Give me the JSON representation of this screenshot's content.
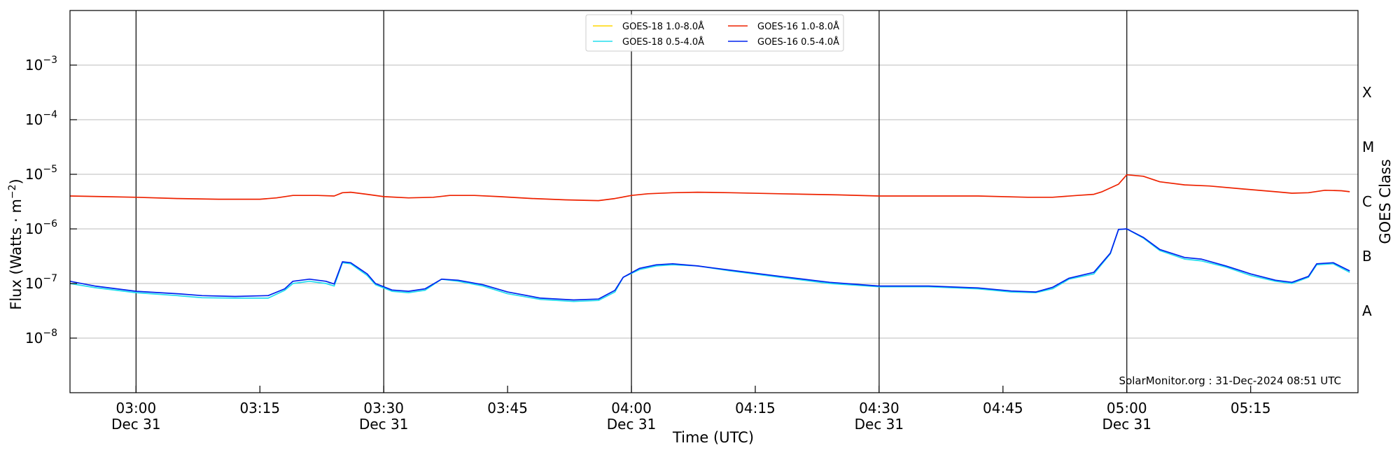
{
  "chart_data": {
    "type": "line",
    "xlabel": "Time (UTC)",
    "ylabel": "Flux (Watts · m",
    "ylabel_sup": "−2",
    "ylabel_close": ")",
    "ylabel_right": "GOES Class",
    "y_scale": "log",
    "ylim": [
      1e-09,
      0.01
    ],
    "xlim": [
      "02:52",
      "05:28"
    ],
    "y_ticks": [
      {
        "value": 1e-08,
        "base": "10",
        "exp": "−8"
      },
      {
        "value": 1e-07,
        "base": "10",
        "exp": "−7"
      },
      {
        "value": 1e-06,
        "base": "10",
        "exp": "−6"
      },
      {
        "value": 1e-05,
        "base": "10",
        "exp": "−5"
      },
      {
        "value": 0.0001,
        "base": "10",
        "exp": "−4"
      },
      {
        "value": 0.001,
        "base": "10",
        "exp": "−3"
      }
    ],
    "x_ticks": [
      {
        "time": "03:00",
        "label": "03:00",
        "date": "Dec 31",
        "major": true
      },
      {
        "time": "03:15",
        "label": "03:15",
        "date": "",
        "major": false
      },
      {
        "time": "03:30",
        "label": "03:30",
        "date": "Dec 31",
        "major": true
      },
      {
        "time": "03:45",
        "label": "03:45",
        "date": "",
        "major": false
      },
      {
        "time": "04:00",
        "label": "04:00",
        "date": "Dec 31",
        "major": true
      },
      {
        "time": "04:15",
        "label": "04:15",
        "date": "",
        "major": false
      },
      {
        "time": "04:30",
        "label": "04:30",
        "date": "Dec 31",
        "major": true
      },
      {
        "time": "04:45",
        "label": "04:45",
        "date": "",
        "major": false
      },
      {
        "time": "05:00",
        "label": "05:00",
        "date": "Dec 31",
        "major": true
      },
      {
        "time": "05:15",
        "label": "05:15",
        "date": "",
        "major": false
      }
    ],
    "goes_classes": [
      {
        "label": "A",
        "flux": 3.16e-08
      },
      {
        "label": "B",
        "flux": 3.16e-07
      },
      {
        "label": "C",
        "flux": 3.16e-06
      },
      {
        "label": "M",
        "flux": 3.16e-05
      },
      {
        "label": "X",
        "flux": 0.000316
      }
    ],
    "grid": true,
    "legend_position": "top-center",
    "legend": [
      {
        "name": "GOES-18 1.0-8.0Å",
        "color": "#ffd700"
      },
      {
        "name": "GOES-18 0.5-4.0Å",
        "color": "#22ddee"
      },
      {
        "name": "GOES-16 1.0-8.0Å",
        "color": "#ee2200"
      },
      {
        "name": "GOES-16 0.5-4.0Å",
        "color": "#0022ee"
      }
    ],
    "series": [
      {
        "name": "GOES-16 1.0-8.0Å",
        "color": "#ee2200",
        "points": [
          [
            "02:52",
            4e-06
          ],
          [
            "02:56",
            3.9e-06
          ],
          [
            "03:00",
            3.8e-06
          ],
          [
            "03:05",
            3.6e-06
          ],
          [
            "03:10",
            3.5e-06
          ],
          [
            "03:15",
            3.5e-06
          ],
          [
            "03:17",
            3.7e-06
          ],
          [
            "03:19",
            4.1e-06
          ],
          [
            "03:22",
            4.1e-06
          ],
          [
            "03:24",
            4e-06
          ],
          [
            "03:25",
            4.6e-06
          ],
          [
            "03:26",
            4.7e-06
          ],
          [
            "03:28",
            4.3e-06
          ],
          [
            "03:30",
            3.9e-06
          ],
          [
            "03:33",
            3.7e-06
          ],
          [
            "03:36",
            3.8e-06
          ],
          [
            "03:38",
            4.1e-06
          ],
          [
            "03:41",
            4.1e-06
          ],
          [
            "03:44",
            3.9e-06
          ],
          [
            "03:48",
            3.6e-06
          ],
          [
            "03:52",
            3.4e-06
          ],
          [
            "03:56",
            3.3e-06
          ],
          [
            "03:58",
            3.6e-06
          ],
          [
            "04:00",
            4.1e-06
          ],
          [
            "04:02",
            4.4e-06
          ],
          [
            "04:05",
            4.6e-06
          ],
          [
            "04:08",
            4.7e-06
          ],
          [
            "04:12",
            4.6e-06
          ],
          [
            "04:18",
            4.4e-06
          ],
          [
            "04:25",
            4.2e-06
          ],
          [
            "04:30",
            4e-06
          ],
          [
            "04:36",
            4e-06
          ],
          [
            "04:42",
            4e-06
          ],
          [
            "04:48",
            3.8e-06
          ],
          [
            "04:51",
            3.8e-06
          ],
          [
            "04:54",
            4.1e-06
          ],
          [
            "04:56",
            4.3e-06
          ],
          [
            "04:57",
            4.8e-06
          ],
          [
            "04:59",
            6.6e-06
          ],
          [
            "05:00",
            9.8e-06
          ],
          [
            "05:02",
            9.2e-06
          ],
          [
            "05:04",
            7.3e-06
          ],
          [
            "05:07",
            6.4e-06
          ],
          [
            "05:10",
            6.1e-06
          ],
          [
            "05:14",
            5.4e-06
          ],
          [
            "05:18",
            4.8e-06
          ],
          [
            "05:20",
            4.5e-06
          ],
          [
            "05:22",
            4.6e-06
          ],
          [
            "05:24",
            5.1e-06
          ],
          [
            "05:26",
            5e-06
          ],
          [
            "05:27",
            4.8e-06
          ]
        ]
      },
      {
        "name": "GOES-18 0.5-4.0Å",
        "color": "#22ddee",
        "points": [
          [
            "02:52",
            1e-07
          ],
          [
            "02:55",
            8.4e-08
          ],
          [
            "03:00",
            6.8e-08
          ],
          [
            "03:05",
            6e-08
          ],
          [
            "03:08",
            5.5e-08
          ],
          [
            "03:12",
            5.4e-08
          ],
          [
            "03:16",
            5.4e-08
          ],
          [
            "03:18",
            7.5e-08
          ],
          [
            "03:19",
            1e-07
          ],
          [
            "03:21",
            1.1e-07
          ],
          [
            "03:23",
            1e-07
          ],
          [
            "03:24",
            9e-08
          ],
          [
            "03:25",
            2.4e-07
          ],
          [
            "03:26",
            2.3e-07
          ],
          [
            "03:28",
            1.4e-07
          ],
          [
            "03:29",
            9.5e-08
          ],
          [
            "03:31",
            7.2e-08
          ],
          [
            "03:33",
            6.8e-08
          ],
          [
            "03:35",
            7.5e-08
          ],
          [
            "03:37",
            1.2e-07
          ],
          [
            "03:39",
            1.1e-07
          ],
          [
            "03:42",
            9e-08
          ],
          [
            "03:45",
            6.5e-08
          ],
          [
            "03:49",
            5.1e-08
          ],
          [
            "03:53",
            4.7e-08
          ],
          [
            "03:56",
            4.9e-08
          ],
          [
            "03:58",
            7e-08
          ],
          [
            "03:59",
            1.3e-07
          ],
          [
            "04:01",
            1.8e-07
          ],
          [
            "04:03",
            2.1e-07
          ],
          [
            "04:05",
            2.2e-07
          ],
          [
            "04:08",
            2.1e-07
          ],
          [
            "04:12",
            1.7e-07
          ],
          [
            "04:18",
            1.3e-07
          ],
          [
            "04:24",
            1e-07
          ],
          [
            "04:30",
            8.7e-08
          ],
          [
            "04:36",
            8.7e-08
          ],
          [
            "04:42",
            8e-08
          ],
          [
            "04:46",
            7e-08
          ],
          [
            "04:49",
            6.8e-08
          ],
          [
            "04:51",
            8e-08
          ],
          [
            "04:53",
            1.2e-07
          ],
          [
            "04:56",
            1.5e-07
          ],
          [
            "04:58",
            3.5e-07
          ],
          [
            "04:59",
            9.7e-07
          ],
          [
            "05:00",
            1e-06
          ],
          [
            "05:02",
            6.8e-07
          ],
          [
            "05:04",
            4e-07
          ],
          [
            "05:07",
            2.8e-07
          ],
          [
            "05:09",
            2.6e-07
          ],
          [
            "05:12",
            2e-07
          ],
          [
            "05:15",
            1.4e-07
          ],
          [
            "05:18",
            1.1e-07
          ],
          [
            "05:20",
            1e-07
          ],
          [
            "05:22",
            1.3e-07
          ],
          [
            "05:23",
            2.2e-07
          ],
          [
            "05:25",
            2.3e-07
          ],
          [
            "05:27",
            1.6e-07
          ]
        ]
      },
      {
        "name": "GOES-16 0.5-4.0Å",
        "color": "#0022ee",
        "points": [
          [
            "02:52",
            1.1e-07
          ],
          [
            "02:55",
            9e-08
          ],
          [
            "03:00",
            7.2e-08
          ],
          [
            "03:05",
            6.5e-08
          ],
          [
            "03:08",
            6e-08
          ],
          [
            "03:12",
            5.8e-08
          ],
          [
            "03:16",
            6e-08
          ],
          [
            "03:18",
            8e-08
          ],
          [
            "03:19",
            1.1e-07
          ],
          [
            "03:21",
            1.2e-07
          ],
          [
            "03:23",
            1.1e-07
          ],
          [
            "03:24",
            9.8e-08
          ],
          [
            "03:25",
            2.5e-07
          ],
          [
            "03:26",
            2.4e-07
          ],
          [
            "03:28",
            1.5e-07
          ],
          [
            "03:29",
            1e-07
          ],
          [
            "03:31",
            7.6e-08
          ],
          [
            "03:33",
            7.2e-08
          ],
          [
            "03:35",
            8e-08
          ],
          [
            "03:37",
            1.2e-07
          ],
          [
            "03:39",
            1.15e-07
          ],
          [
            "03:42",
            9.5e-08
          ],
          [
            "03:45",
            7e-08
          ],
          [
            "03:49",
            5.4e-08
          ],
          [
            "03:53",
            5e-08
          ],
          [
            "03:56",
            5.2e-08
          ],
          [
            "03:58",
            7.5e-08
          ],
          [
            "03:59",
            1.3e-07
          ],
          [
            "04:01",
            1.9e-07
          ],
          [
            "04:03",
            2.2e-07
          ],
          [
            "04:05",
            2.3e-07
          ],
          [
            "04:08",
            2.1e-07
          ],
          [
            "04:12",
            1.75e-07
          ],
          [
            "04:18",
            1.35e-07
          ],
          [
            "04:24",
            1.05e-07
          ],
          [
            "04:30",
            9e-08
          ],
          [
            "04:36",
            9e-08
          ],
          [
            "04:42",
            8.3e-08
          ],
          [
            "04:46",
            7.3e-08
          ],
          [
            "04:49",
            7e-08
          ],
          [
            "04:51",
            8.5e-08
          ],
          [
            "04:53",
            1.25e-07
          ],
          [
            "04:56",
            1.6e-07
          ],
          [
            "04:58",
            3.6e-07
          ],
          [
            "04:59",
            9.8e-07
          ],
          [
            "05:00",
            1e-06
          ],
          [
            "05:02",
            7e-07
          ],
          [
            "05:04",
            4.2e-07
          ],
          [
            "05:07",
            3e-07
          ],
          [
            "05:09",
            2.8e-07
          ],
          [
            "05:12",
            2.1e-07
          ],
          [
            "05:15",
            1.5e-07
          ],
          [
            "05:18",
            1.15e-07
          ],
          [
            "05:20",
            1.05e-07
          ],
          [
            "05:22",
            1.35e-07
          ],
          [
            "05:23",
            2.3e-07
          ],
          [
            "05:25",
            2.4e-07
          ],
          [
            "05:27",
            1.7e-07
          ]
        ]
      }
    ]
  },
  "credit": "SolarMonitor.org : 31-Dec-2024 08:51 UTC"
}
